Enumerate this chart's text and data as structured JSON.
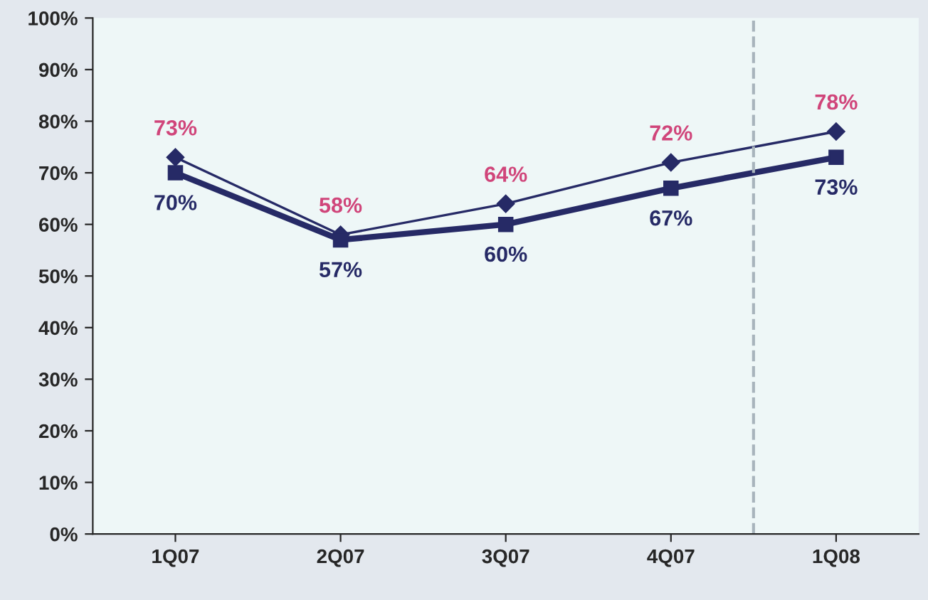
{
  "chart_data": {
    "type": "line",
    "categories": [
      "1Q07",
      "2Q07",
      "3Q07",
      "4Q07",
      "1Q08"
    ],
    "series": [
      {
        "color": "#262a66",
        "marker": "diamond",
        "values": [
          73,
          58,
          64,
          72,
          78
        ],
        "value_labels": [
          "73%",
          "58%",
          "64%",
          "72%",
          "78%"
        ]
      },
      {
        "color": "#262a66",
        "marker": "square",
        "values": [
          70,
          57,
          60,
          67,
          73
        ],
        "value_labels": [
          "70%",
          "57%",
          "60%",
          "67%",
          "73%"
        ]
      }
    ],
    "ylim": [
      0,
      100
    ],
    "yticks": [
      {
        "value": 0,
        "label": "0%"
      },
      {
        "value": 10,
        "label": "10%"
      },
      {
        "value": 20,
        "label": "20%"
      },
      {
        "value": 30,
        "label": "30%"
      },
      {
        "value": 40,
        "label": "40%"
      },
      {
        "value": 50,
        "label": "50%"
      },
      {
        "value": 60,
        "label": "60%"
      },
      {
        "value": 70,
        "label": "70%"
      },
      {
        "value": 80,
        "label": "80%"
      },
      {
        "value": 90,
        "label": "90%"
      },
      {
        "value": 100,
        "label": "100%"
      }
    ],
    "grid": false,
    "legend": false
  }
}
